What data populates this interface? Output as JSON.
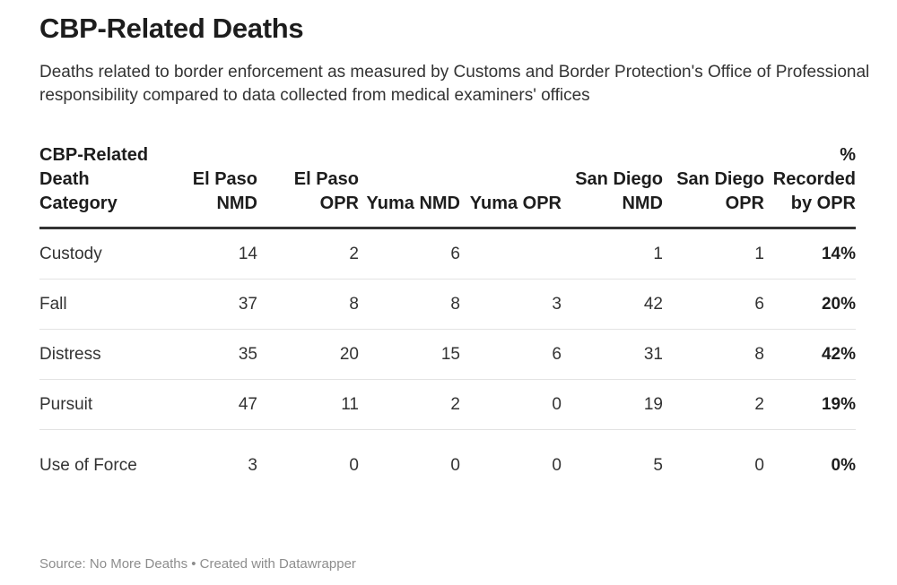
{
  "header": {
    "title": "CBP-Related Deaths",
    "subtitle": "Deaths related to border enforcement as measured by Customs and Border Protection's Office of Professional responsibility compared to data collected from medical examiners' offices"
  },
  "chart_data": {
    "type": "table",
    "columns": [
      "CBP-Related Death Category",
      "El Paso NMD",
      "El Paso OPR",
      "Yuma NMD",
      "Yuma OPR",
      "San Diego NMD",
      "San Diego OPR",
      "% Recorded by OPR"
    ],
    "rows": [
      [
        "Custody",
        "14",
        "2",
        "6",
        "",
        "1",
        "1",
        "14%"
      ],
      [
        "Fall",
        "37",
        "8",
        "8",
        "3",
        "42",
        "6",
        "20%"
      ],
      [
        "Distress",
        "35",
        "20",
        "15",
        "6",
        "31",
        "8",
        "42%"
      ],
      [
        "Pursuit",
        "47",
        "11",
        "2",
        "0",
        "19",
        "2",
        "19%"
      ],
      [
        "Use of Force",
        "3",
        "0",
        "0",
        "0",
        "5",
        "0",
        "0%"
      ]
    ]
  },
  "footer": {
    "source": "Source: No More Deaths • Created with Datawrapper"
  }
}
